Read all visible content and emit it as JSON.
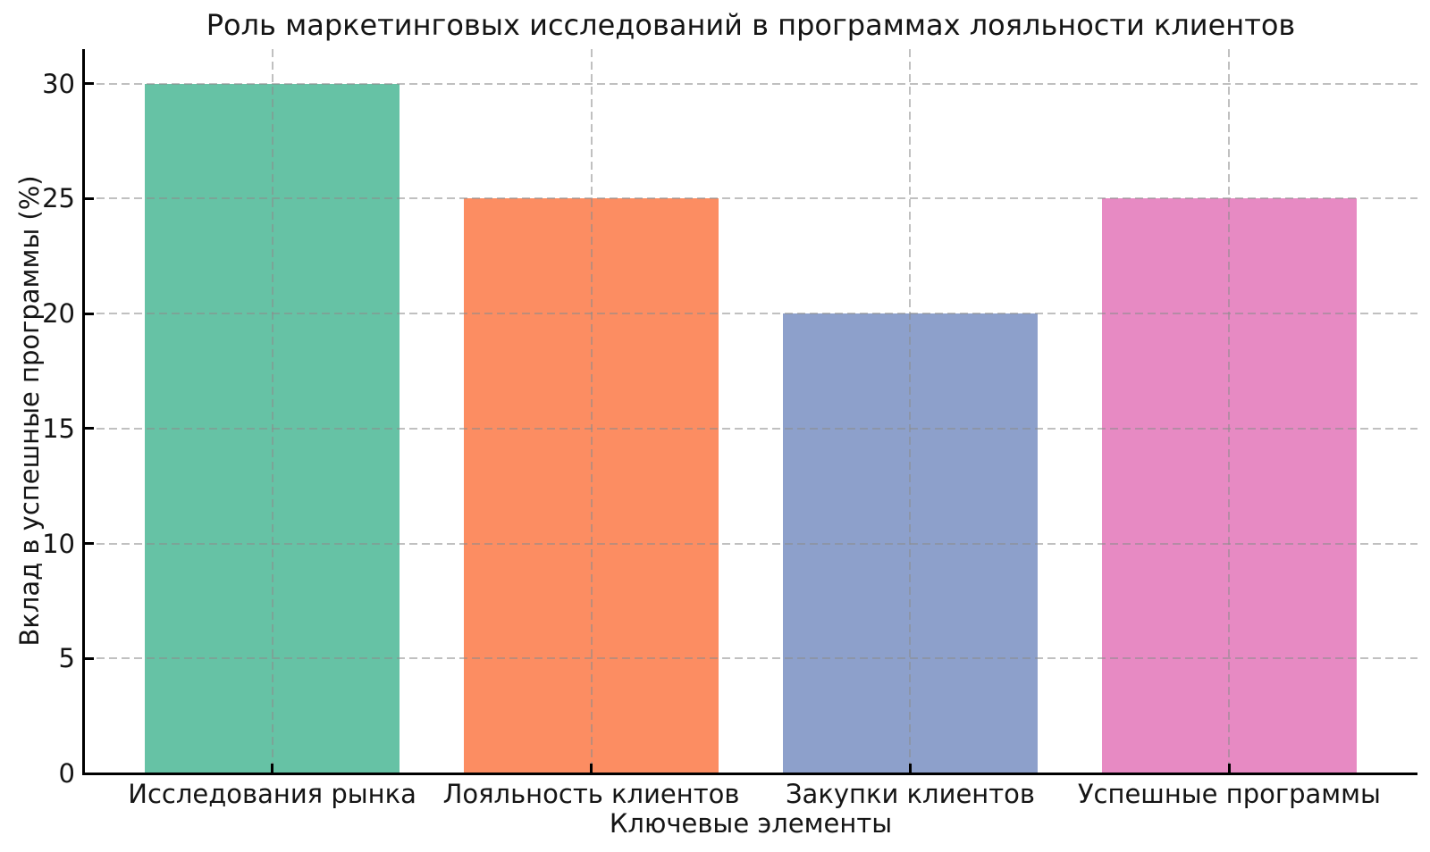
{
  "chart_data": {
    "type": "bar",
    "title": "Роль маркетинговых исследований в программах лояльности клиентов",
    "xlabel": "Ключевые элементы",
    "ylabel": "Вклад в успешные программы (%)",
    "categories": [
      "Исследования рынка",
      "Лояльность клиентов",
      "Закупки клиентов",
      "Успешные программы"
    ],
    "values": [
      30,
      25,
      20,
      25
    ],
    "bar_colors": [
      "#66c2a5",
      "#fc8d62",
      "#8da0cb",
      "#e78ac3"
    ],
    "yticks": [
      0,
      5,
      10,
      15,
      20,
      25,
      30
    ],
    "ylim": [
      0,
      31.5
    ],
    "xlim": [
      -0.59,
      3.59
    ],
    "bar_width": 0.8,
    "grid": "on",
    "grid_style": "dashed",
    "grid_color": "#c8c8c8",
    "legend": "none",
    "background_color": "#ffffff",
    "text_color": "#151515",
    "spine_color": "#000000"
  }
}
